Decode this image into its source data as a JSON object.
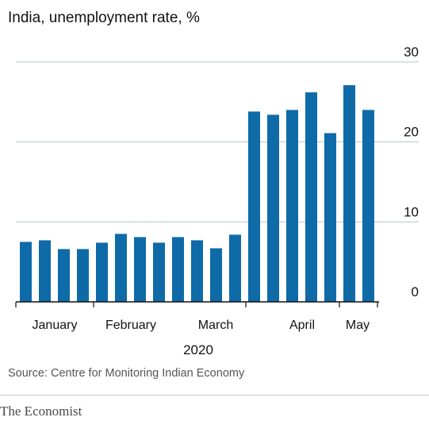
{
  "chart_data": {
    "type": "bar",
    "title_fragment": "",
    "subtitle": "India, unemployment rate, %",
    "xlabel": "2020",
    "ylabel": "",
    "ylim": [
      0,
      30
    ],
    "yticks": [
      0,
      10,
      20,
      30
    ],
    "month_labels": [
      "January",
      "February",
      "March",
      "April",
      "May"
    ],
    "values": [
      7.5,
      7.7,
      6.6,
      6.6,
      7.4,
      8.5,
      8.1,
      7.4,
      8.1,
      7.7,
      6.7,
      8.4,
      23.8,
      23.4,
      24.0,
      26.2,
      21.1,
      27.1,
      24.0
    ],
    "color": "#0e6ba8",
    "grid": true,
    "source": "Source: Centre for Monitoring Indian Economy"
  },
  "footer": {
    "brand": "The Economist"
  }
}
